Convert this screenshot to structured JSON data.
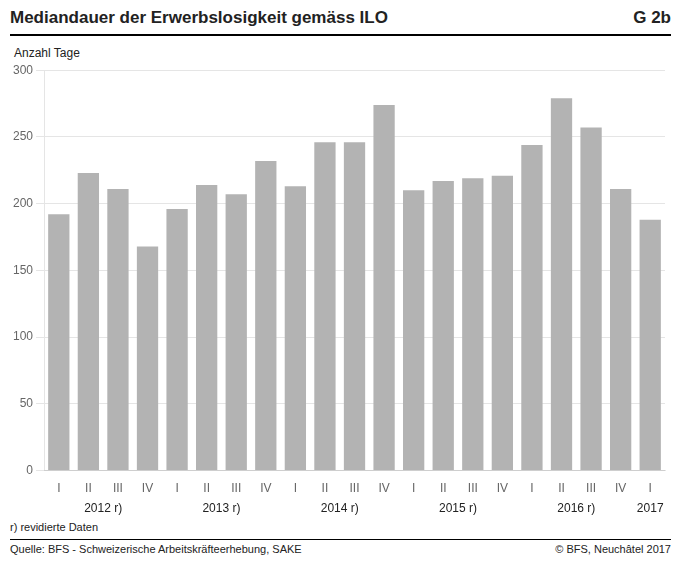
{
  "chart_data": {
    "type": "bar",
    "title": "Mediandauer der Erwerbslosigkeit gemäss ILO",
    "title_right": "G 2b",
    "ylabel": "Anzahl Tage",
    "categories": [
      "I",
      "II",
      "III",
      "IV",
      "I",
      "II",
      "III",
      "IV",
      "I",
      "II",
      "III",
      "IV",
      "I",
      "II",
      "III",
      "IV",
      "I",
      "II",
      "III",
      "IV",
      "I"
    ],
    "values": [
      192,
      223,
      211,
      168,
      196,
      214,
      207,
      232,
      213,
      246,
      246,
      274,
      210,
      217,
      219,
      221,
      244,
      279,
      257,
      211,
      188
    ],
    "color": "#b3b3b3",
    "ylim": [
      0,
      300
    ],
    "yticks": [
      0,
      50,
      100,
      150,
      200,
      250,
      300
    ],
    "grid": true,
    "annotations": [
      {
        "text": "2012 r)",
        "x": 1.5
      },
      {
        "text": "2013 r)",
        "x": 5.5
      },
      {
        "text": "2014 r)",
        "x": 9.5
      },
      {
        "text": "2015 r)",
        "x": 13.5
      },
      {
        "text": "2016 r)",
        "x": 17.5
      },
      {
        "text": "2017",
        "x": 20.0
      }
    ],
    "footnote": "r) revidierte Daten",
    "source_left": "Quelle: BFS - Schweizerische Arbeitskräfteerhebung, SAKE",
    "source_right": "© BFS, Neuchâtel 2017"
  }
}
